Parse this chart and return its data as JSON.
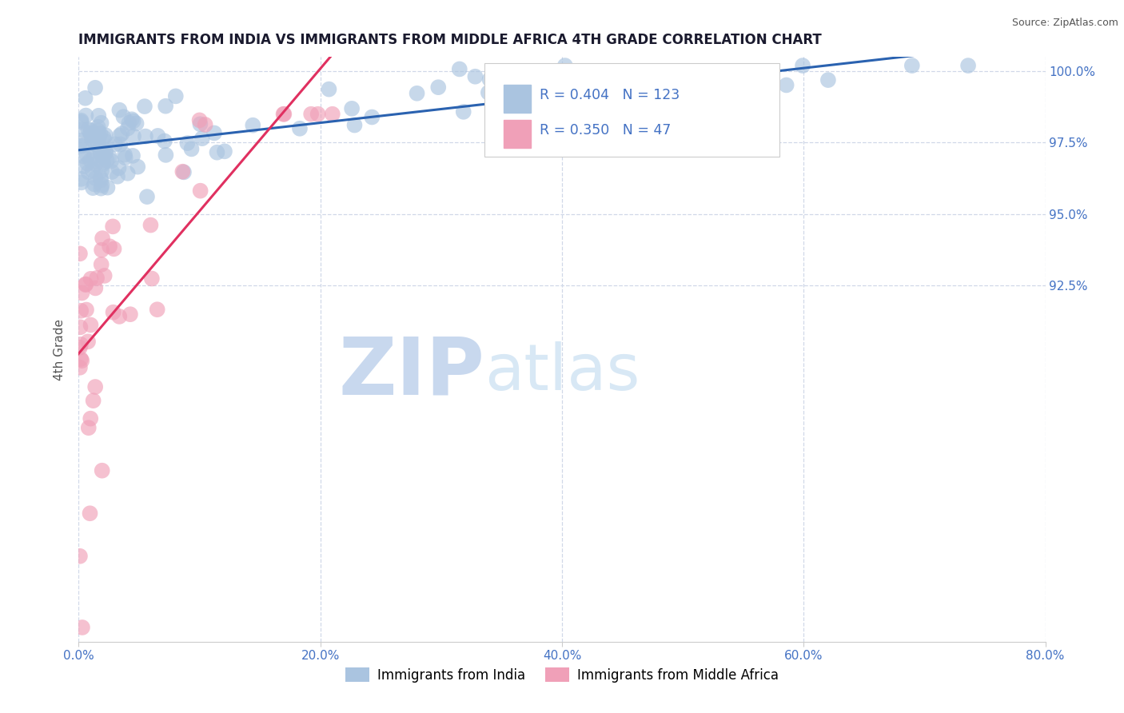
{
  "title": "IMMIGRANTS FROM INDIA VS IMMIGRANTS FROM MIDDLE AFRICA 4TH GRADE CORRELATION CHART",
  "source": "Source: ZipAtlas.com",
  "ylabel": "4th Grade",
  "legend_label1": "Immigrants from India",
  "legend_label2": "Immigrants from Middle Africa",
  "R1": 0.404,
  "N1": 123,
  "R2": 0.35,
  "N2": 47,
  "xlim": [
    0.0,
    80.0
  ],
  "ylim": [
    80.0,
    100.5
  ],
  "xtick_vals": [
    0.0,
    20.0,
    40.0,
    60.0,
    80.0
  ],
  "ytick_vals": [
    92.5,
    95.0,
    97.5,
    100.0
  ],
  "color_blue": "#aac4e0",
  "color_pink": "#f0a0b8",
  "line_color_blue": "#2a62b0",
  "line_color_pink": "#e03060",
  "watermark_zip": "ZIP",
  "watermark_atlas": "atlas",
  "watermark_color": "#dce8f5",
  "background_color": "#ffffff",
  "grid_color": "#d0d8e8",
  "title_color": "#1a1a2e",
  "tick_label_color": "#4472c4",
  "source_color": "#555555"
}
